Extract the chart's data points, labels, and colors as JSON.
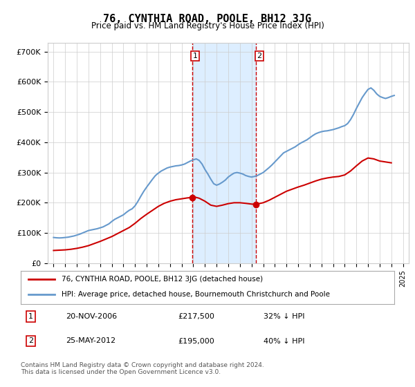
{
  "title": "76, CYNTHIA ROAD, POOLE, BH12 3JG",
  "subtitle": "Price paid vs. HM Land Registry's House Price Index (HPI)",
  "ylabel_ticks": [
    "£0",
    "£100K",
    "£200K",
    "£300K",
    "£400K",
    "£500K",
    "£600K",
    "£700K"
  ],
  "ytick_values": [
    0,
    100000,
    200000,
    300000,
    400000,
    500000,
    600000,
    700000
  ],
  "ylim": [
    0,
    730000
  ],
  "xlim_start": 1995.0,
  "xlim_end": 2025.5,
  "hpi_color": "#6699cc",
  "price_color": "#cc0000",
  "shaded_region": [
    2006.9,
    2012.4
  ],
  "shaded_color": "#ddeeff",
  "marker1_x": 2006.9,
  "marker1_y": 217500,
  "marker2_x": 2012.4,
  "marker2_y": 195000,
  "legend_label1": "76, CYNTHIA ROAD, POOLE, BH12 3JG (detached house)",
  "legend_label2": "HPI: Average price, detached house, Bournemouth Christchurch and Poole",
  "annotation1_label": "1",
  "annotation2_label": "2",
  "annotation1_text": "20-NOV-2006     £217,500     32% ↓ HPI",
  "annotation2_text": "25-MAY-2012     £195,000     40% ↓ HPI",
  "footer": "Contains HM Land Registry data © Crown copyright and database right 2024.\nThis data is licensed under the Open Government Licence v3.0.",
  "background_color": "#ffffff",
  "grid_color": "#cccccc",
  "hpi_data_x": [
    1995,
    1995.25,
    1995.5,
    1995.75,
    1996,
    1996.25,
    1996.5,
    1996.75,
    1997,
    1997.25,
    1997.5,
    1997.75,
    1998,
    1998.25,
    1998.5,
    1998.75,
    1999,
    1999.25,
    1999.5,
    1999.75,
    2000,
    2000.25,
    2000.5,
    2000.75,
    2001,
    2001.25,
    2001.5,
    2001.75,
    2002,
    2002.25,
    2002.5,
    2002.75,
    2003,
    2003.25,
    2003.5,
    2003.75,
    2004,
    2004.25,
    2004.5,
    2004.75,
    2005,
    2005.25,
    2005.5,
    2005.75,
    2006,
    2006.25,
    2006.5,
    2006.75,
    2007,
    2007.25,
    2007.5,
    2007.75,
    2008,
    2008.25,
    2008.5,
    2008.75,
    2009,
    2009.25,
    2009.5,
    2009.75,
    2010,
    2010.25,
    2010.5,
    2010.75,
    2011,
    2011.25,
    2011.5,
    2011.75,
    2012,
    2012.25,
    2012.5,
    2012.75,
    2013,
    2013.25,
    2013.5,
    2013.75,
    2014,
    2014.25,
    2014.5,
    2014.75,
    2015,
    2015.25,
    2015.5,
    2015.75,
    2016,
    2016.25,
    2016.5,
    2016.75,
    2017,
    2017.25,
    2017.5,
    2017.75,
    2018,
    2018.25,
    2018.5,
    2018.75,
    2019,
    2019.25,
    2019.5,
    2019.75,
    2020,
    2020.25,
    2020.5,
    2020.75,
    2021,
    2021.25,
    2021.5,
    2021.75,
    2022,
    2022.25,
    2022.5,
    2022.75,
    2023,
    2023.25,
    2023.5,
    2023.75,
    2024,
    2024.25
  ],
  "hpi_data_y": [
    85000,
    84000,
    83500,
    84000,
    85000,
    86000,
    88000,
    90000,
    93000,
    96000,
    100000,
    104000,
    108000,
    110000,
    112000,
    114000,
    117000,
    120000,
    125000,
    130000,
    138000,
    145000,
    150000,
    155000,
    160000,
    168000,
    175000,
    180000,
    190000,
    205000,
    222000,
    238000,
    252000,
    265000,
    278000,
    290000,
    298000,
    305000,
    310000,
    315000,
    318000,
    320000,
    322000,
    323000,
    325000,
    328000,
    333000,
    338000,
    342000,
    345000,
    340000,
    328000,
    310000,
    295000,
    278000,
    263000,
    258000,
    262000,
    268000,
    275000,
    285000,
    292000,
    298000,
    300000,
    298000,
    295000,
    290000,
    287000,
    285000,
    287000,
    290000,
    295000,
    300000,
    308000,
    316000,
    325000,
    335000,
    345000,
    355000,
    365000,
    370000,
    375000,
    380000,
    385000,
    392000,
    398000,
    403000,
    408000,
    415000,
    422000,
    428000,
    432000,
    435000,
    437000,
    438000,
    440000,
    442000,
    445000,
    448000,
    452000,
    455000,
    462000,
    475000,
    492000,
    512000,
    530000,
    548000,
    562000,
    575000,
    580000,
    572000,
    560000,
    552000,
    548000,
    545000,
    548000,
    552000,
    555000
  ],
  "price_data_x": [
    1995,
    1995.5,
    1996,
    1996.5,
    1997,
    1997.5,
    1998,
    1998.5,
    1999,
    1999.5,
    2000,
    2000.5,
    2001,
    2001.5,
    2002,
    2002.5,
    2003,
    2003.5,
    2004,
    2004.5,
    2005,
    2005.5,
    2006,
    2006.5,
    2006.9,
    2007,
    2007.5,
    2008,
    2008.5,
    2009,
    2009.5,
    2010,
    2010.5,
    2011,
    2011.5,
    2012,
    2012.4,
    2012.5,
    2013,
    2013.5,
    2014,
    2014.5,
    2015,
    2015.5,
    2016,
    2016.5,
    2017,
    2017.5,
    2018,
    2018.5,
    2019,
    2019.5,
    2020,
    2020.5,
    2021,
    2021.5,
    2022,
    2022.5,
    2023,
    2023.5,
    2024
  ],
  "price_data_y": [
    42000,
    43000,
    44000,
    46000,
    49000,
    53000,
    58000,
    65000,
    72000,
    80000,
    88000,
    98000,
    108000,
    118000,
    132000,
    148000,
    162000,
    175000,
    188000,
    198000,
    205000,
    210000,
    213000,
    216000,
    217500,
    220000,
    215000,
    205000,
    192000,
    188000,
    192000,
    197000,
    200000,
    200000,
    198000,
    195500,
    195000,
    196000,
    200000,
    208000,
    218000,
    228000,
    238000,
    245000,
    252000,
    258000,
    265000,
    272000,
    278000,
    282000,
    285000,
    287000,
    292000,
    305000,
    322000,
    338000,
    348000,
    345000,
    338000,
    335000,
    332000
  ]
}
